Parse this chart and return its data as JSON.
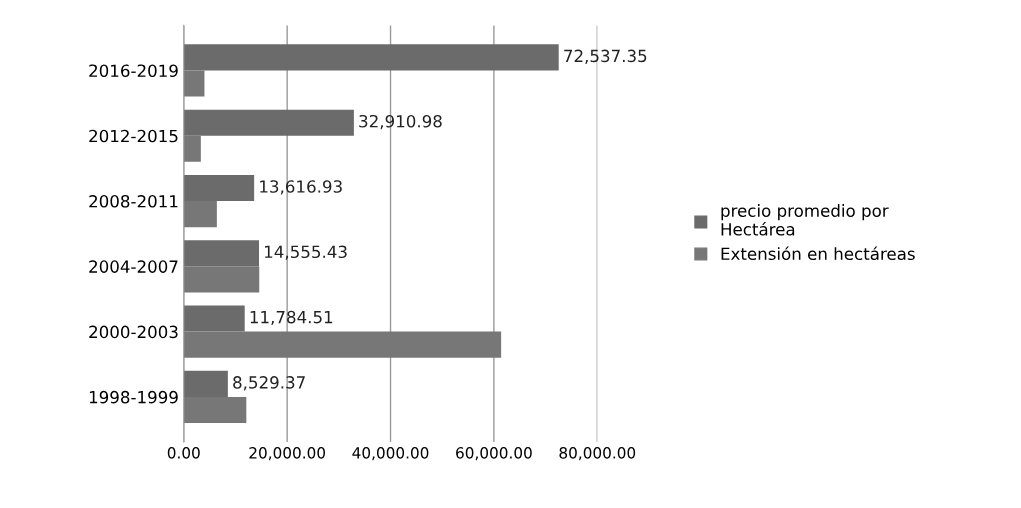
{
  "chart_data": {
    "type": "bar",
    "orientation": "horizontal",
    "categories": [
      "2016-2019",
      "2012-2015",
      "2008-2011",
      "2004-2007",
      "2000-2003",
      "1998-1999"
    ],
    "series": [
      {
        "name": "precio promedio por Hectárea",
        "color": "#6b6b6b",
        "values": [
          72537.35,
          32910.98,
          13616.93,
          14555.43,
          11784.51,
          8529.37
        ],
        "value_labels": [
          "72,537.35",
          "32,910.98",
          "13,616.93",
          "14,555.43",
          "11,784.51",
          "8,529.37"
        ]
      },
      {
        "name": "Extensión en hectáreas",
        "color": "#777777",
        "values": [
          4000,
          3300,
          6400,
          14600,
          61400,
          12100
        ]
      }
    ],
    "xlim": [
      0,
      80000
    ],
    "xticks": [
      {
        "value": 0,
        "label": "0.00"
      },
      {
        "value": 20000,
        "label": "20,000.00"
      },
      {
        "value": 40000,
        "label": "40,000.00"
      },
      {
        "value": 60000,
        "label": "60,000.00"
      },
      {
        "value": 80000,
        "label": "80,000.00"
      }
    ],
    "grid": "x",
    "legend": "right"
  }
}
